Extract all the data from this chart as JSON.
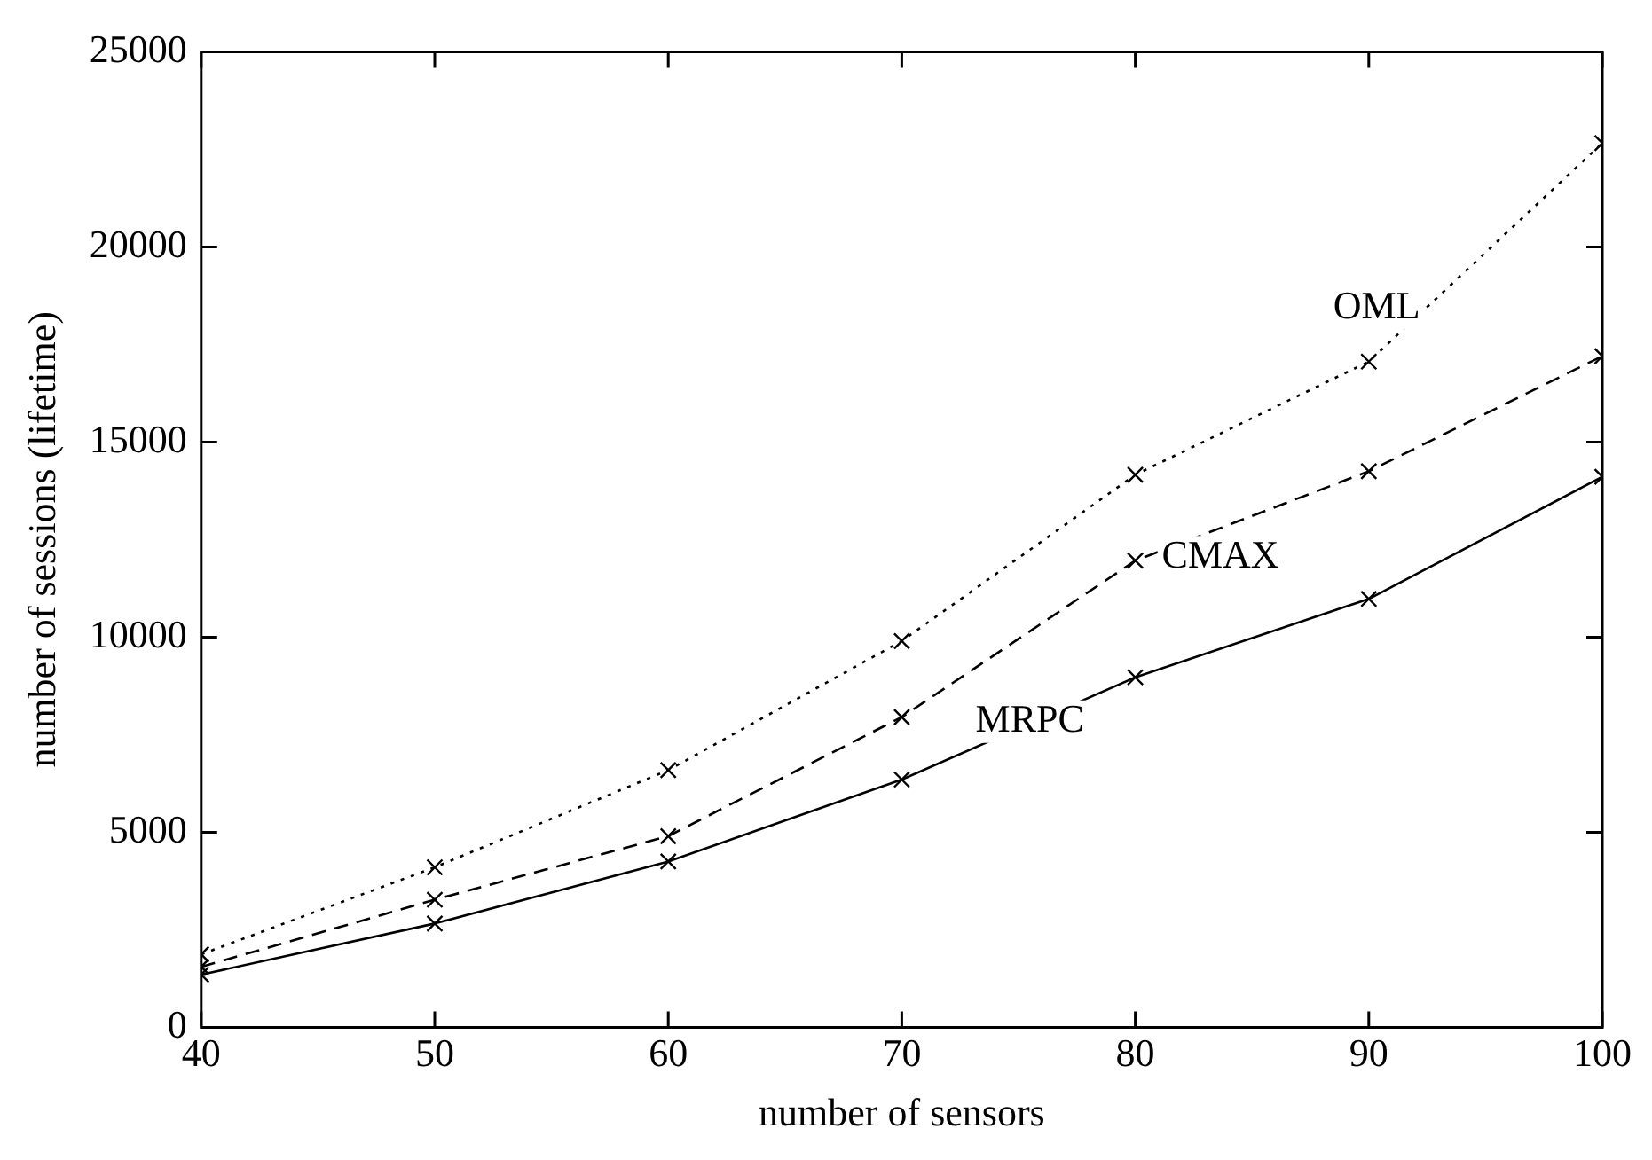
{
  "chart_data": {
    "type": "line",
    "xlabel": "number of sensors",
    "ylabel": "number of sessions (lifetime)",
    "x": [
      40,
      50,
      60,
      70,
      80,
      90,
      100
    ],
    "series": [
      {
        "name": "OML",
        "color": "#000000",
        "marker": "cross",
        "line_style": "dotted",
        "values": [
          1870,
          4100,
          6590,
          9900,
          14160,
          17060,
          22660
        ]
      },
      {
        "name": "CMAX",
        "color": "#000000",
        "marker": "cross",
        "line_style": "dashed",
        "values": [
          1550,
          3270,
          4900,
          7950,
          11960,
          14250,
          17200
        ]
      },
      {
        "name": "MRPC",
        "color": "#000000",
        "marker": "cross",
        "line_style": "solid",
        "values": [
          1350,
          2660,
          4250,
          6350,
          8970,
          10980,
          14110
        ]
      }
    ],
    "xlim": [
      40,
      100
    ],
    "xticks": [
      40,
      50,
      60,
      70,
      80,
      90,
      100
    ],
    "ylim": [
      0,
      25000
    ],
    "yticks": [
      0,
      5000,
      10000,
      15000,
      20000,
      25000
    ],
    "grid": false,
    "legend": false
  }
}
